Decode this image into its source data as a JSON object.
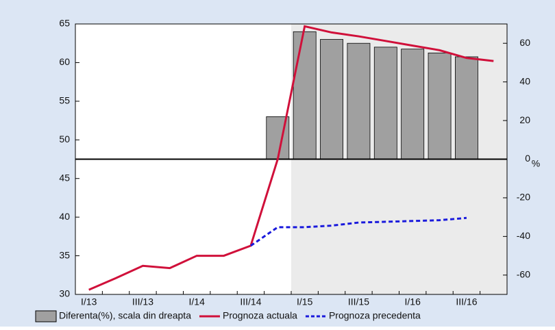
{
  "chart_data": {
    "type": "bar-line",
    "categories": [
      "I/13",
      null,
      "III/13",
      null,
      "I/14",
      null,
      "III/14",
      null,
      "I/15",
      null,
      "III/15",
      null,
      "I/16",
      null,
      "III/16",
      null
    ],
    "series": [
      {
        "name": "Diferenta(%), scala din dreapta",
        "type": "bar",
        "axis": "y2",
        "color": "#a0a0a0",
        "values": [
          null,
          null,
          null,
          null,
          null,
          null,
          null,
          22,
          66,
          62,
          60,
          58,
          57,
          55,
          53,
          null
        ]
      },
      {
        "name": "Prognoza actuala",
        "type": "line",
        "color": "#d0103a",
        "values": [
          30.6,
          32.1,
          33.7,
          33.4,
          35,
          35,
          36.3,
          47.5,
          64.7,
          63.9,
          63.4,
          62.8,
          62.2,
          61.6,
          60.6,
          60.2
        ]
      },
      {
        "name": "Prognoza precedenta",
        "type": "dashed-line",
        "color": "#1a1adc",
        "values": [
          null,
          null,
          null,
          null,
          null,
          null,
          36.3,
          38.7,
          38.7,
          38.9,
          39.3,
          39.4,
          39.5,
          39.6,
          39.9,
          null
        ]
      }
    ],
    "ylim": [
      30,
      65
    ],
    "yticks": [
      30,
      35,
      40,
      45,
      50,
      55,
      60,
      65
    ],
    "y2lim": [
      -70,
      70
    ],
    "y2ticks": [
      -60,
      -40,
      -20,
      0,
      20,
      40,
      60
    ],
    "y2label": "%",
    "grid": false,
    "legend": "bottom"
  }
}
